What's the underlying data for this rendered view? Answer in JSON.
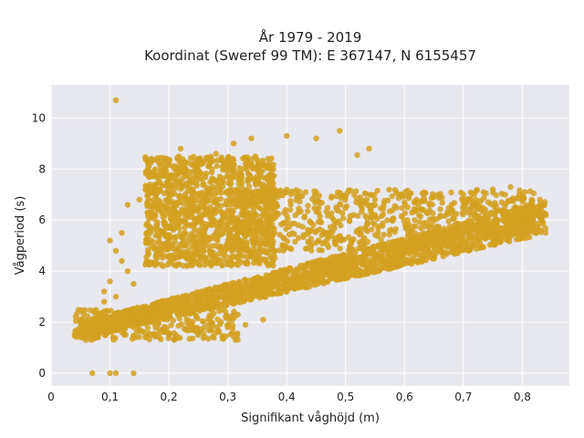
{
  "chart_data": {
    "type": "scatter",
    "title_line1": "År 1979 - 2019",
    "title_line2": "Koordinat (Sweref 99 TM): E 367147, N 6155457",
    "xlabel": "Signifikant våghöjd (m)",
    "ylabel": "Vågperiod (s)",
    "xlim": [
      0,
      0.88
    ],
    "ylim": [
      -0.5,
      11.3
    ],
    "x_ticks": [
      0,
      0.1,
      0.2,
      0.3,
      0.4,
      0.5,
      0.6,
      0.7,
      0.8
    ],
    "x_tick_labels": [
      "0",
      "0,1",
      "0,2",
      "0,3",
      "0,4",
      "0,5",
      "0,6",
      "0,7",
      "0,8"
    ],
    "y_ticks": [
      0,
      2,
      4,
      6,
      8,
      10
    ],
    "y_tick_labels": [
      "0",
      "2",
      "4",
      "6",
      "8",
      "10"
    ],
    "grid": true,
    "legend": "none",
    "marker_color": "#D4A020",
    "background_color": "#E8E8EF",
    "points": [
      [
        0.11,
        10.7
      ],
      [
        0.07,
        0.0
      ],
      [
        0.1,
        0.0
      ],
      [
        0.11,
        0.0
      ],
      [
        0.14,
        0.0
      ],
      [
        0.49,
        9.5
      ],
      [
        0.54,
        8.8
      ],
      [
        0.52,
        8.55
      ],
      [
        0.4,
        9.3
      ],
      [
        0.45,
        9.2
      ],
      [
        0.05,
        1.5
      ],
      [
        0.06,
        1.6
      ],
      [
        0.07,
        2.0
      ],
      [
        0.08,
        2.3
      ],
      [
        0.09,
        2.8
      ],
      [
        0.1,
        5.2
      ],
      [
        0.11,
        4.8
      ],
      [
        0.12,
        5.5
      ],
      [
        0.12,
        4.4
      ],
      [
        0.1,
        3.6
      ],
      [
        0.13,
        4.0
      ],
      [
        0.14,
        3.5
      ],
      [
        0.15,
        6.8
      ],
      [
        0.16,
        7.2
      ],
      [
        0.13,
        6.6
      ],
      [
        0.12,
        1.6
      ],
      [
        0.14,
        1.8
      ],
      [
        0.16,
        2.0
      ],
      [
        0.18,
        2.1
      ],
      [
        0.2,
        2.3
      ],
      [
        0.22,
        2.5
      ],
      [
        0.25,
        2.8
      ],
      [
        0.28,
        3.0
      ],
      [
        0.3,
        3.1
      ],
      [
        0.33,
        3.3
      ],
      [
        0.36,
        3.5
      ],
      [
        0.4,
        3.7
      ],
      [
        0.44,
        3.9
      ],
      [
        0.48,
        4.1
      ],
      [
        0.52,
        4.3
      ],
      [
        0.56,
        4.5
      ],
      [
        0.6,
        4.7
      ],
      [
        0.64,
        4.9
      ],
      [
        0.68,
        5.1
      ],
      [
        0.72,
        5.3
      ],
      [
        0.76,
        5.6
      ],
      [
        0.8,
        5.9
      ],
      [
        0.84,
        6.2
      ],
      [
        0.83,
        6.8
      ],
      [
        0.78,
        7.3
      ],
      [
        0.22,
        8.8
      ],
      [
        0.25,
        8.4
      ],
      [
        0.28,
        8.6
      ],
      [
        0.31,
        9.0
      ],
      [
        0.34,
        9.2
      ],
      [
        0.2,
        7.5
      ],
      [
        0.24,
        7.0
      ],
      [
        0.27,
        6.5
      ],
      [
        0.3,
        6.0
      ],
      [
        0.26,
        5.5
      ],
      [
        0.23,
        5.0
      ],
      [
        0.21,
        4.5
      ],
      [
        0.19,
        4.2
      ],
      [
        0.18,
        5.8
      ],
      [
        0.17,
        6.2
      ],
      [
        0.35,
        7.0
      ],
      [
        0.4,
        7.2
      ],
      [
        0.45,
        7.1
      ],
      [
        0.5,
        6.9
      ],
      [
        0.55,
        6.8
      ],
      [
        0.6,
        6.7
      ],
      [
        0.65,
        6.9
      ],
      [
        0.7,
        7.0
      ],
      [
        0.75,
        7.2
      ],
      [
        0.35,
        5.5
      ],
      [
        0.42,
        5.8
      ],
      [
        0.48,
        6.0
      ],
      [
        0.55,
        6.2
      ],
      [
        0.62,
        6.4
      ],
      [
        0.68,
        6.6
      ],
      [
        0.3,
        1.8
      ],
      [
        0.25,
        1.6
      ],
      [
        0.33,
        1.9
      ],
      [
        0.36,
        2.1
      ],
      [
        0.2,
        1.5
      ],
      [
        0.16,
        1.4
      ],
      [
        0.08,
        1.4
      ],
      [
        0.04,
        1.5
      ],
      [
        0.09,
        3.2
      ],
      [
        0.11,
        3.0
      ]
    ]
  }
}
